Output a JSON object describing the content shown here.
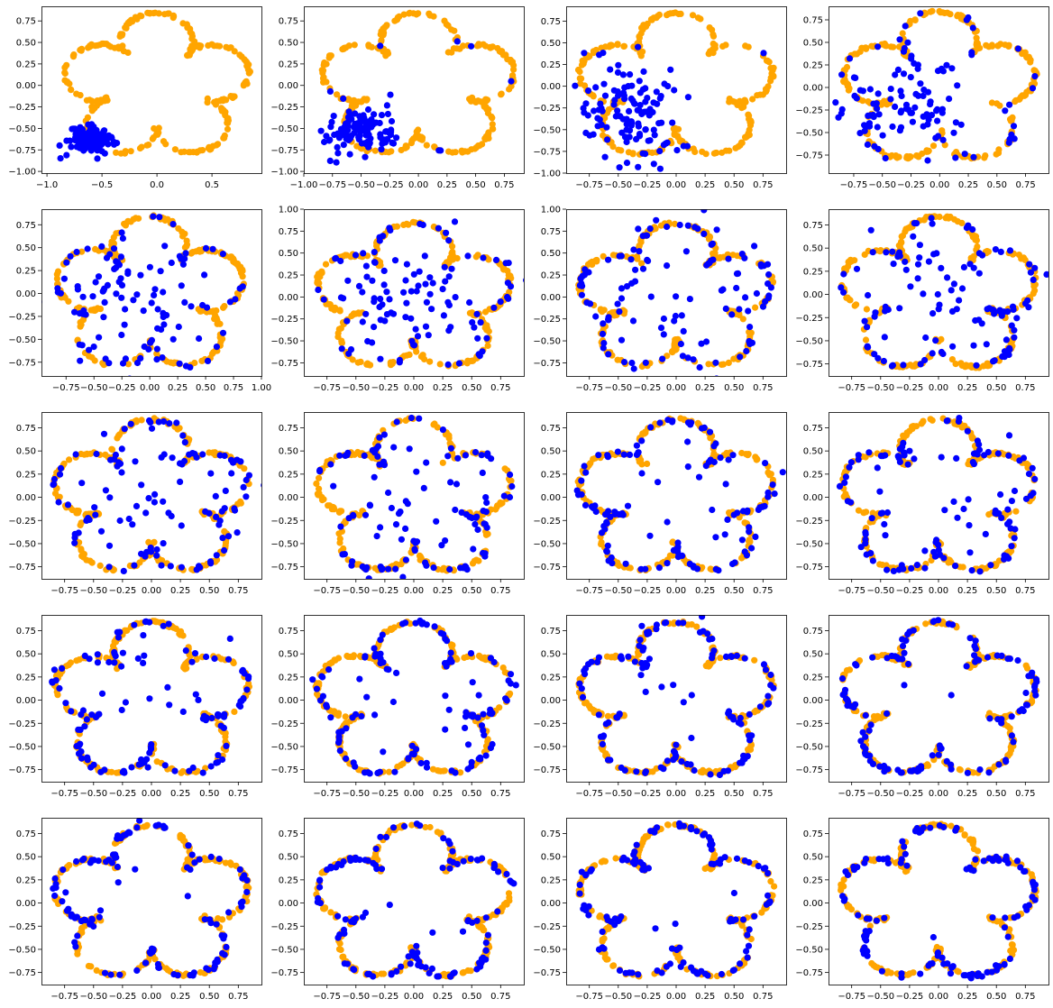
{
  "colors": {
    "target": "#ffa500",
    "sample": "#0000ff",
    "axes": "#000000"
  },
  "chart_data": [
    {
      "type": "scatter",
      "panel": 1,
      "xlim": [
        -1.05,
        0.95
      ],
      "ylim": [
        -1.02,
        0.92
      ],
      "xticks": [
        -1.0,
        -0.5,
        0.0,
        0.5
      ],
      "xtick_labels": [
        "−1.0",
        "−0.5",
        "0.0",
        "0.5"
      ],
      "yticks": [
        -1.0,
        -0.75,
        -0.5,
        -0.25,
        0.0,
        0.25,
        0.5,
        0.75
      ],
      "ytick_labels": [
        "−1.00",
        "−0.75",
        "−0.50",
        "−0.25",
        "0.00",
        "0.25",
        "0.50",
        "0.75"
      ],
      "sample_center": [
        -0.62,
        -0.64
      ],
      "sample_spread": [
        0.1,
        0.08
      ],
      "sample_mix": 0.0
    },
    {
      "type": "scatter",
      "panel": 2,
      "xlim": [
        -1.0,
        0.92
      ],
      "ylim": [
        -1.02,
        0.92
      ],
      "xticks": [
        -1.0,
        -0.75,
        -0.5,
        -0.25,
        0.0,
        0.25,
        0.5,
        0.75
      ],
      "xtick_labels": [
        "−1.00",
        "−0.75",
        "−0.50",
        "−0.25",
        "0.00",
        "0.25",
        "0.50",
        "0.75"
      ],
      "yticks": [
        -1.0,
        -0.75,
        -0.5,
        -0.25,
        0.0,
        0.25,
        0.5,
        0.75
      ],
      "ytick_labels": [
        "−1.00",
        "−0.75",
        "−0.50",
        "−0.25",
        "0.00",
        "0.25",
        "0.50",
        "0.75"
      ],
      "sample_center": [
        -0.5,
        -0.52
      ],
      "sample_spread": [
        0.16,
        0.14
      ],
      "sample_mix": 0.05
    },
    {
      "type": "scatter",
      "panel": 3,
      "xlim": [
        -0.95,
        0.95
      ],
      "ylim": [
        -1.0,
        0.92
      ],
      "xticks": [
        -0.75,
        -0.5,
        -0.25,
        0.0,
        0.25,
        0.5,
        0.75
      ],
      "xtick_labels": [
        "−0.75",
        "−0.50",
        "−0.25",
        "0.00",
        "0.25",
        "0.50",
        "0.75"
      ],
      "yticks": [
        -1.0,
        -0.75,
        -0.5,
        -0.25,
        0.0,
        0.25,
        0.5,
        0.75
      ],
      "ytick_labels": [
        "−1.00",
        "−0.75",
        "−0.50",
        "−0.25",
        "0.00",
        "0.25",
        "0.50",
        "0.75"
      ],
      "sample_center": [
        -0.42,
        -0.32
      ],
      "sample_spread": [
        0.22,
        0.28
      ],
      "sample_mix": 0.12
    },
    {
      "type": "scatter",
      "panel": 4,
      "xlim": [
        -0.97,
        0.95
      ],
      "ylim": [
        -0.95,
        0.9
      ],
      "xticks": [
        -0.75,
        -0.5,
        -0.25,
        0.0,
        0.25,
        0.5,
        0.75
      ],
      "xtick_labels": [
        "−0.75",
        "−0.50",
        "−0.25",
        "0.00",
        "0.25",
        "0.50",
        "0.75"
      ],
      "yticks": [
        -0.75,
        -0.5,
        -0.25,
        0.0,
        0.25,
        0.5,
        0.75
      ],
      "ytick_labels": [
        "−0.75",
        "−0.50",
        "−0.25",
        "0.00",
        "0.25",
        "0.50",
        "0.75"
      ],
      "sample_center": [
        -0.32,
        -0.18
      ],
      "sample_spread": [
        0.3,
        0.32
      ],
      "sample_mix": 0.22
    },
    {
      "type": "scatter",
      "panel": 5,
      "xlim": [
        -0.97,
        1.0
      ],
      "ylim": [
        -0.9,
        0.92
      ],
      "xticks": [
        -0.75,
        -0.5,
        -0.25,
        0.0,
        0.25,
        0.5,
        0.75,
        1.0
      ],
      "xtick_labels": [
        "−0.75",
        "−0.50",
        "−0.25",
        "0.00",
        "0.25",
        "0.50",
        "0.75",
        "1.00"
      ],
      "yticks": [
        -0.75,
        -0.5,
        -0.25,
        0.0,
        0.25,
        0.5,
        0.75
      ],
      "ytick_labels": [
        "−0.75",
        "−0.50",
        "−0.25",
        "0.00",
        "0.25",
        "0.50",
        "0.75"
      ],
      "sample_center": [
        -0.15,
        -0.12
      ],
      "sample_spread": [
        0.36,
        0.36
      ],
      "sample_mix": 0.3
    },
    {
      "type": "scatter",
      "panel": 6,
      "xlim": [
        -0.95,
        0.95
      ],
      "ylim": [
        -0.9,
        1.0
      ],
      "xticks": [
        -0.75,
        -0.5,
        -0.25,
        0.0,
        0.25,
        0.5,
        0.75
      ],
      "xtick_labels": [
        "−0.75",
        "−0.50",
        "−0.25",
        "0.00",
        "0.25",
        "0.50",
        "0.75"
      ],
      "yticks": [
        -0.75,
        -0.5,
        -0.25,
        0.0,
        0.25,
        0.5,
        0.75,
        1.0
      ],
      "ytick_labels": [
        "−0.75",
        "−0.50",
        "−0.25",
        "0.00",
        "0.25",
        "0.50",
        "0.75",
        "1.00"
      ],
      "sample_center": [
        -0.05,
        -0.05
      ],
      "sample_spread": [
        0.38,
        0.36
      ],
      "sample_mix": 0.4
    },
    {
      "type": "scatter",
      "panel": 7,
      "xlim": [
        -0.95,
        0.95
      ],
      "ylim": [
        -0.9,
        1.0
      ],
      "xticks": [
        -0.75,
        -0.5,
        -0.25,
        0.0,
        0.25,
        0.5,
        0.75
      ],
      "xtick_labels": [
        "−0.75",
        "−0.50",
        "−0.25",
        "0.00",
        "0.25",
        "0.50",
        "0.75"
      ],
      "yticks": [
        -0.75,
        -0.5,
        -0.25,
        0.0,
        0.25,
        0.5,
        0.75,
        1.0
      ],
      "ytick_labels": [
        "−0.75",
        "−0.50",
        "−0.25",
        "0.00",
        "0.25",
        "0.50",
        "0.75",
        "1.00"
      ],
      "sample_center": [
        0.0,
        0.0
      ],
      "sample_spread": [
        0.38,
        0.36
      ],
      "sample_mix": 0.5
    },
    {
      "type": "scatter",
      "panel": 8,
      "xlim": [
        -0.95,
        0.95
      ],
      "ylim": [
        -0.88,
        0.92
      ],
      "xticks": [
        -0.75,
        -0.5,
        -0.25,
        0.0,
        0.25,
        0.5,
        0.75
      ],
      "xtick_labels": [
        "−0.75",
        "−0.50",
        "−0.25",
        "0.00",
        "0.25",
        "0.50",
        "0.75"
      ],
      "yticks": [
        -0.75,
        -0.5,
        -0.25,
        0.0,
        0.25,
        0.5,
        0.75
      ],
      "ytick_labels": [
        "−0.75",
        "−0.50",
        "−0.25",
        "0.00",
        "0.25",
        "0.50",
        "0.75"
      ],
      "sample_center": [
        0.0,
        0.0
      ],
      "sample_spread": [
        0.38,
        0.36
      ],
      "sample_mix": 0.58
    },
    {
      "type": "scatter",
      "panel": 9,
      "xlim": [
        -0.95,
        0.95
      ],
      "ylim": [
        -0.88,
        0.92
      ],
      "xticks": [
        -0.75,
        -0.5,
        -0.25,
        0.0,
        0.25,
        0.5,
        0.75
      ],
      "xtick_labels": [
        "−0.75",
        "−0.50",
        "−0.25",
        "0.00",
        "0.25",
        "0.50",
        "0.75"
      ],
      "yticks": [
        -0.75,
        -0.5,
        -0.25,
        0.0,
        0.25,
        0.5,
        0.75
      ],
      "ytick_labels": [
        "−0.75",
        "−0.50",
        "−0.25",
        "0.00",
        "0.25",
        "0.50",
        "0.75"
      ],
      "sample_center": [
        0.0,
        0.0
      ],
      "sample_spread": [
        0.38,
        0.36
      ],
      "sample_mix": 0.64
    },
    {
      "type": "scatter",
      "panel": 10,
      "xlim": [
        -0.95,
        0.95
      ],
      "ylim": [
        -0.88,
        0.92
      ],
      "xticks": [
        -0.75,
        -0.5,
        -0.25,
        0.0,
        0.25,
        0.5,
        0.75
      ],
      "xtick_labels": [
        "−0.75",
        "−0.50",
        "−0.25",
        "0.00",
        "0.25",
        "0.50",
        "0.75"
      ],
      "yticks": [
        -0.75,
        -0.5,
        -0.25,
        0.0,
        0.25,
        0.5,
        0.75
      ],
      "ytick_labels": [
        "−0.75",
        "−0.50",
        "−0.25",
        "0.00",
        "0.25",
        "0.50",
        "0.75"
      ],
      "sample_center": [
        0.0,
        0.0
      ],
      "sample_spread": [
        0.38,
        0.36
      ],
      "sample_mix": 0.7
    },
    {
      "type": "scatter",
      "panel": 11,
      "xlim": [
        -0.95,
        0.95
      ],
      "ylim": [
        -0.88,
        0.92
      ],
      "xticks": [
        -0.75,
        -0.5,
        -0.25,
        0.0,
        0.25,
        0.5,
        0.75
      ],
      "xtick_labels": [
        "−0.75",
        "−0.50",
        "−0.25",
        "0.00",
        "0.25",
        "0.50",
        "0.75"
      ],
      "yticks": [
        -0.75,
        -0.5,
        -0.25,
        0.0,
        0.25,
        0.5,
        0.75
      ],
      "ytick_labels": [
        "−0.75",
        "−0.50",
        "−0.25",
        "0.00",
        "0.25",
        "0.50",
        "0.75"
      ],
      "sample_center": [
        0.0,
        0.0
      ],
      "sample_spread": [
        0.38,
        0.36
      ],
      "sample_mix": 0.76
    },
    {
      "type": "scatter",
      "panel": 12,
      "xlim": [
        -0.95,
        0.95
      ],
      "ylim": [
        -0.88,
        0.92
      ],
      "xticks": [
        -0.75,
        -0.5,
        -0.25,
        0.0,
        0.25,
        0.5,
        0.75
      ],
      "xtick_labels": [
        "−0.75",
        "−0.50",
        "−0.25",
        "0.00",
        "0.25",
        "0.50",
        "0.75"
      ],
      "yticks": [
        -0.75,
        -0.5,
        -0.25,
        0.0,
        0.25,
        0.5,
        0.75
      ],
      "ytick_labels": [
        "−0.75",
        "−0.50",
        "−0.25",
        "0.00",
        "0.25",
        "0.50",
        "0.75"
      ],
      "sample_center": [
        0.0,
        0.0
      ],
      "sample_spread": [
        0.38,
        0.36
      ],
      "sample_mix": 0.8
    },
    {
      "type": "scatter",
      "panel": 13,
      "xlim": [
        -0.95,
        0.95
      ],
      "ylim": [
        -0.88,
        0.92
      ],
      "xticks": [
        -0.75,
        -0.5,
        -0.25,
        0.0,
        0.25,
        0.5,
        0.75
      ],
      "xtick_labels": [
        "−0.75",
        "−0.50",
        "−0.25",
        "0.00",
        "0.25",
        "0.50",
        "0.75"
      ],
      "yticks": [
        -0.75,
        -0.5,
        -0.25,
        0.0,
        0.25,
        0.5,
        0.75
      ],
      "ytick_labels": [
        "−0.75",
        "−0.50",
        "−0.25",
        "0.00",
        "0.25",
        "0.50",
        "0.75"
      ],
      "sample_center": [
        0.0,
        0.0
      ],
      "sample_spread": [
        0.38,
        0.36
      ],
      "sample_mix": 0.84
    },
    {
      "type": "scatter",
      "panel": 14,
      "xlim": [
        -0.95,
        0.95
      ],
      "ylim": [
        -0.88,
        0.92
      ],
      "xticks": [
        -0.75,
        -0.5,
        -0.25,
        0.0,
        0.25,
        0.5,
        0.75
      ],
      "xtick_labels": [
        "−0.75",
        "−0.50",
        "−0.25",
        "0.00",
        "0.25",
        "0.50",
        "0.75"
      ],
      "yticks": [
        -0.75,
        -0.5,
        -0.25,
        0.0,
        0.25,
        0.5,
        0.75
      ],
      "ytick_labels": [
        "−0.75",
        "−0.50",
        "−0.25",
        "0.00",
        "0.25",
        "0.50",
        "0.75"
      ],
      "sample_center": [
        0.0,
        0.0
      ],
      "sample_spread": [
        0.38,
        0.36
      ],
      "sample_mix": 0.87
    },
    {
      "type": "scatter",
      "panel": 15,
      "xlim": [
        -0.95,
        0.95
      ],
      "ylim": [
        -0.88,
        0.92
      ],
      "xticks": [
        -0.75,
        -0.5,
        -0.25,
        0.0,
        0.25,
        0.5,
        0.75
      ],
      "xtick_labels": [
        "−0.75",
        "−0.50",
        "−0.25",
        "0.00",
        "0.25",
        "0.50",
        "0.75"
      ],
      "yticks": [
        -0.75,
        -0.5,
        -0.25,
        0.0,
        0.25,
        0.5,
        0.75
      ],
      "ytick_labels": [
        "−0.75",
        "−0.50",
        "−0.25",
        "0.00",
        "0.25",
        "0.50",
        "0.75"
      ],
      "sample_center": [
        0.0,
        0.0
      ],
      "sample_spread": [
        0.38,
        0.36
      ],
      "sample_mix": 0.9
    },
    {
      "type": "scatter",
      "panel": 16,
      "xlim": [
        -0.95,
        0.95
      ],
      "ylim": [
        -0.88,
        0.92
      ],
      "xticks": [
        -0.75,
        -0.5,
        -0.25,
        0.0,
        0.25,
        0.5,
        0.75
      ],
      "xtick_labels": [
        "−0.75",
        "−0.50",
        "−0.25",
        "0.00",
        "0.25",
        "0.50",
        "0.75"
      ],
      "yticks": [
        -0.75,
        -0.5,
        -0.25,
        0.0,
        0.25,
        0.5,
        0.75
      ],
      "ytick_labels": [
        "−0.75",
        "−0.50",
        "−0.25",
        "0.00",
        "0.25",
        "0.50",
        "0.75"
      ],
      "sample_center": [
        0.0,
        0.0
      ],
      "sample_spread": [
        0.38,
        0.36
      ],
      "sample_mix": 0.92
    },
    {
      "type": "scatter",
      "panel": 17,
      "xlim": [
        -0.95,
        0.95
      ],
      "ylim": [
        -0.88,
        0.92
      ],
      "xticks": [
        -0.75,
        -0.5,
        -0.25,
        0.0,
        0.25,
        0.5,
        0.75
      ],
      "xtick_labels": [
        "−0.75",
        "−0.50",
        "−0.25",
        "0.00",
        "0.25",
        "0.50",
        "0.75"
      ],
      "yticks": [
        -0.75,
        -0.5,
        -0.25,
        0.0,
        0.25,
        0.5,
        0.75
      ],
      "ytick_labels": [
        "−0.75",
        "−0.50",
        "−0.25",
        "0.00",
        "0.25",
        "0.50",
        "0.75"
      ],
      "sample_center": [
        0.0,
        0.0
      ],
      "sample_spread": [
        0.38,
        0.36
      ],
      "sample_mix": 0.94
    },
    {
      "type": "scatter",
      "panel": 18,
      "xlim": [
        -0.95,
        0.95
      ],
      "ylim": [
        -0.88,
        0.92
      ],
      "xticks": [
        -0.75,
        -0.5,
        -0.25,
        0.0,
        0.25,
        0.5,
        0.75
      ],
      "xtick_labels": [
        "−0.75",
        "−0.50",
        "−0.25",
        "0.00",
        "0.25",
        "0.50",
        "0.75"
      ],
      "yticks": [
        -0.75,
        -0.5,
        -0.25,
        0.0,
        0.25,
        0.5,
        0.75
      ],
      "ytick_labels": [
        "−0.75",
        "−0.50",
        "−0.25",
        "0.00",
        "0.25",
        "0.50",
        "0.75"
      ],
      "sample_center": [
        0.0,
        0.0
      ],
      "sample_spread": [
        0.38,
        0.36
      ],
      "sample_mix": 0.95
    },
    {
      "type": "scatter",
      "panel": 19,
      "xlim": [
        -0.95,
        0.95
      ],
      "ylim": [
        -0.88,
        0.92
      ],
      "xticks": [
        -0.75,
        -0.5,
        -0.25,
        0.0,
        0.25,
        0.5,
        0.75
      ],
      "xtick_labels": [
        "−0.75",
        "−0.50",
        "−0.25",
        "0.00",
        "0.25",
        "0.50",
        "0.75"
      ],
      "yticks": [
        -0.75,
        -0.5,
        -0.25,
        0.0,
        0.25,
        0.5,
        0.75
      ],
      "ytick_labels": [
        "−0.75",
        "−0.50",
        "−0.25",
        "0.00",
        "0.25",
        "0.50",
        "0.75"
      ],
      "sample_center": [
        0.0,
        0.0
      ],
      "sample_spread": [
        0.38,
        0.36
      ],
      "sample_mix": 0.96
    },
    {
      "type": "scatter",
      "panel": 20,
      "xlim": [
        -0.95,
        0.95
      ],
      "ylim": [
        -0.88,
        0.92
      ],
      "xticks": [
        -0.75,
        -0.5,
        -0.25,
        0.0,
        0.25,
        0.5,
        0.75
      ],
      "xtick_labels": [
        "−0.75",
        "−0.50",
        "−0.25",
        "0.00",
        "0.25",
        "0.50",
        "0.75"
      ],
      "yticks": [
        -0.75,
        -0.5,
        -0.25,
        0.0,
        0.25,
        0.5,
        0.75
      ],
      "ytick_labels": [
        "−0.75",
        "−0.50",
        "−0.25",
        "0.00",
        "0.25",
        "0.50",
        "0.75"
      ],
      "sample_center": [
        0.0,
        0.0
      ],
      "sample_spread": [
        0.38,
        0.36
      ],
      "sample_mix": 0.97
    }
  ]
}
